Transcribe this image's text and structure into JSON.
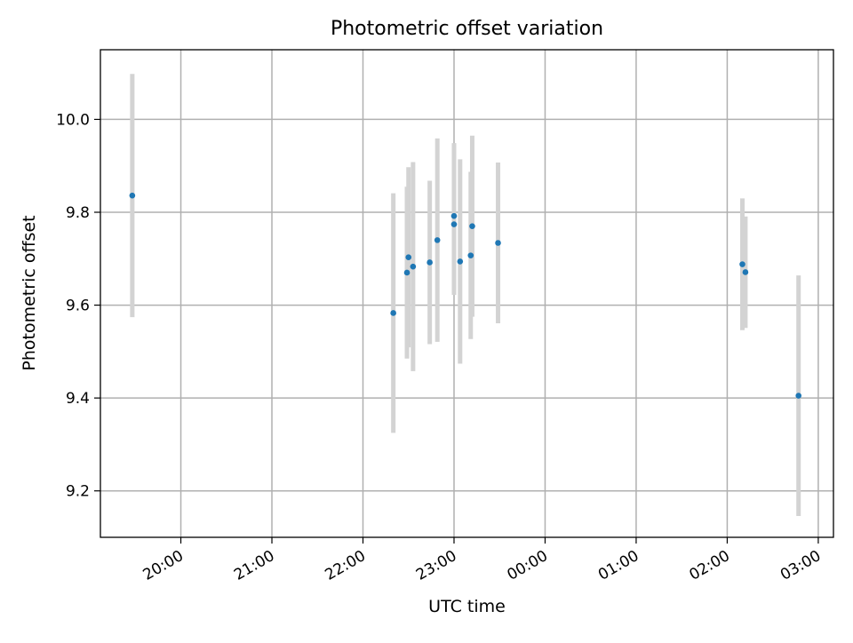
{
  "chart_data": {
    "type": "scatter",
    "title": "Photometric offset variation",
    "xlabel": "UTC time",
    "ylabel": "Photometric offset",
    "x_tick_labels": [
      "20:00",
      "21:00",
      "22:00",
      "23:00",
      "00:00",
      "01:00",
      "02:00",
      "03:00"
    ],
    "y_ticks": [
      9.2,
      9.4,
      9.6,
      9.8,
      10.0
    ],
    "y_tick_labels": [
      "9.2",
      "9.4",
      "9.6",
      "9.8",
      "10.0"
    ],
    "ylim": [
      9.1,
      10.15
    ],
    "xlim": [
      "19:07",
      "03:10"
    ],
    "grid": true,
    "marker_color": "#1f77b4",
    "errorbar_color": "#d3d3d3",
    "points": [
      {
        "time": "19:28",
        "y": 9.836,
        "err": 0.262
      },
      {
        "time": "22:20",
        "y": 9.583,
        "err": 0.258
      },
      {
        "time": "22:29",
        "y": 9.67,
        "err": 0.185
      },
      {
        "time": "22:30",
        "y": 9.703,
        "err": 0.194
      },
      {
        "time": "22:33",
        "y": 9.683,
        "err": 0.225
      },
      {
        "time": "22:44",
        "y": 9.692,
        "err": 0.176
      },
      {
        "time": "22:49",
        "y": 9.74,
        "err": 0.219
      },
      {
        "time": "23:00",
        "y": 9.774,
        "err": 0.152
      },
      {
        "time": "23:00",
        "y": 9.792,
        "err": 0.157
      },
      {
        "time": "23:04",
        "y": 9.694,
        "err": 0.22
      },
      {
        "time": "23:11",
        "y": 9.707,
        "err": 0.18
      },
      {
        "time": "23:12",
        "y": 9.77,
        "err": 0.195
      },
      {
        "time": "23:29",
        "y": 9.734,
        "err": 0.173
      },
      {
        "time": "02:10",
        "y": 9.688,
        "err": 0.142
      },
      {
        "time": "02:12",
        "y": 9.671,
        "err": 0.12
      },
      {
        "time": "02:47",
        "y": 9.405,
        "err": 0.259
      }
    ]
  }
}
